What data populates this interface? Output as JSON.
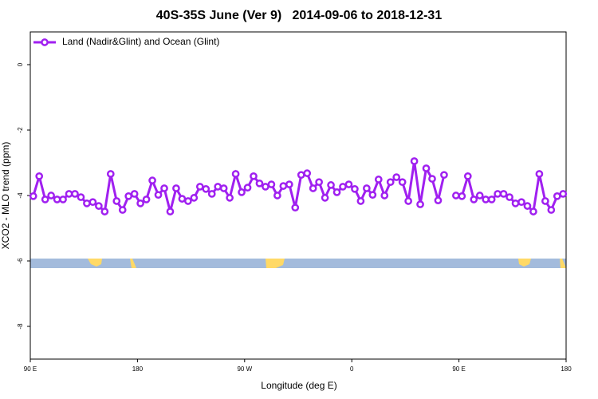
{
  "chart_data": {
    "type": "line",
    "title": "40S-35S June (Ver 9)   2014-09-06 to 2018-12-31",
    "xlabel": "Longitude (deg E)",
    "ylabel": "XCO2 - MLO trend (ppm)",
    "x": [
      92.5,
      97.5,
      102.5,
      107.5,
      112.5,
      117.5,
      122.5,
      127.5,
      132.5,
      137.5,
      142.5,
      147.5,
      152.5,
      157.5,
      162.5,
      167.5,
      172.5,
      177.5,
      182.5,
      187.5,
      192.5,
      197.5,
      202.5,
      207.5,
      212.5,
      217.5,
      222.5,
      227.5,
      232.5,
      237.5,
      242.5,
      247.5,
      252.5,
      257.5,
      262.5,
      267.5,
      272.5,
      277.5,
      282.5,
      287.5,
      292.5,
      297.5,
      302.5,
      307.5,
      312.5,
      317.5,
      322.5,
      327.5,
      332.5,
      337.5,
      342.5,
      347.5,
      352.5,
      357.5,
      362.5,
      367.5,
      372.5,
      377.5,
      382.5,
      387.5,
      392.5,
      397.5,
      402.5,
      407.5,
      412.5,
      417.5,
      422.5,
      427.5,
      432.5,
      437.5,
      442.5,
      447.5,
      452.5,
      457.5,
      462.5,
      467.5,
      472.5,
      477.5,
      482.5,
      487.5,
      492.5,
      497.5,
      502.5,
      507.5,
      512.5,
      517.5,
      522.5,
      527.5,
      532.5,
      537.5
    ],
    "series": [
      {
        "name": "Land (Nadir&Glint) and Ocean (Glint)",
        "color": "#a020f0",
        "values": [
          -4.02,
          -3.41,
          -4.12,
          -4.0,
          -4.12,
          -4.12,
          -3.95,
          -3.95,
          -4.05,
          -4.24,
          -4.2,
          -4.32,
          -4.49,
          -3.34,
          -4.17,
          -4.44,
          -4.02,
          -3.95,
          -4.24,
          -4.12,
          -3.54,
          -3.98,
          -3.78,
          -4.49,
          -3.78,
          -4.1,
          -4.17,
          -4.07,
          -3.73,
          -3.8,
          -3.95,
          -3.73,
          -3.78,
          -4.07,
          -3.34,
          -3.9,
          -3.76,
          -3.41,
          -3.63,
          -3.73,
          -3.66,
          -4.0,
          -3.71,
          -3.66,
          -4.37,
          -3.37,
          -3.32,
          -3.78,
          -3.59,
          -4.07,
          -3.68,
          -3.9,
          -3.73,
          -3.66,
          -3.8,
          -4.17,
          -3.78,
          -3.98,
          -3.51,
          -4.0,
          -3.59,
          -3.44,
          -3.59,
          -4.17,
          -2.95,
          -4.27,
          -3.17,
          -3.49,
          -4.15,
          -3.37,
          null,
          -4.0,
          -4.02,
          -3.41,
          -4.12,
          -4.0,
          -4.12,
          -4.12,
          -3.95,
          -3.95,
          -4.05,
          -4.24,
          -4.2,
          -4.32,
          -4.49,
          -3.34,
          -4.17,
          -4.44,
          -4.02,
          -3.95
        ]
      }
    ],
    "xlim": [
      90,
      540
    ],
    "xticks": [
      {
        "value": 90,
        "label": "90 E"
      },
      180,
      {
        "value": 270,
        "label": "90 W"
      },
      {
        "value": 360,
        "label": "0"
      },
      {
        "value": 450,
        "label": "90 E"
      },
      {
        "value": 540,
        "label": "180"
      }
    ],
    "ylim": [
      -9,
      1
    ],
    "yticks": [
      0,
      -2,
      -4,
      -6,
      -8
    ],
    "legend": "upper left"
  }
}
